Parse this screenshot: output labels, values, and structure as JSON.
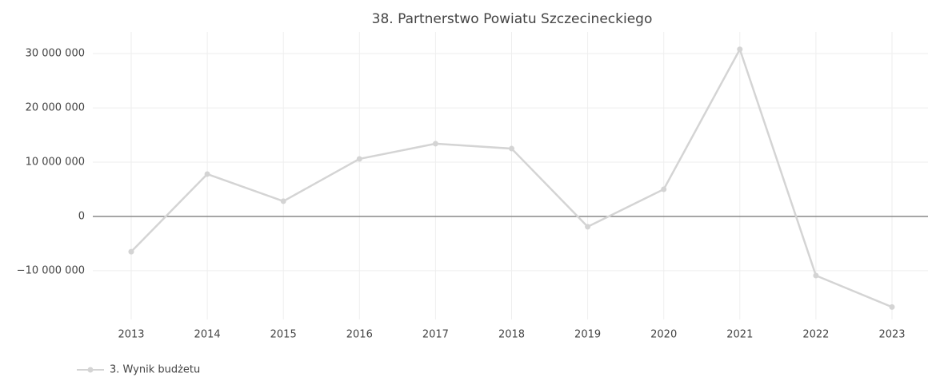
{
  "chart_data": {
    "type": "line",
    "title": "38. Partnerstwo Powiatu Szczecineckiego",
    "categories": [
      "2013",
      "2014",
      "2015",
      "2016",
      "2017",
      "2018",
      "2019",
      "2020",
      "2021",
      "2022",
      "2023"
    ],
    "series": [
      {
        "name": "3. Wynik budżetu",
        "color": "#d4d4d4",
        "values": [
          -6500000,
          7800000,
          2800000,
          10600000,
          13400000,
          12500000,
          -1900000,
          5000000,
          30800000,
          -10900000,
          -16700000
        ]
      }
    ],
    "ylim": [
      -19000000,
      34000000
    ],
    "yticks": [
      {
        "value": -10000000,
        "label": "−10 000 000"
      },
      0,
      {
        "value": 10000000,
        "label": "10 000 000"
      },
      {
        "value": 20000000,
        "label": "20 000 000"
      },
      {
        "value": 30000000,
        "label": "30 000 000"
      }
    ],
    "grid": true,
    "legend": "bottom-left"
  }
}
